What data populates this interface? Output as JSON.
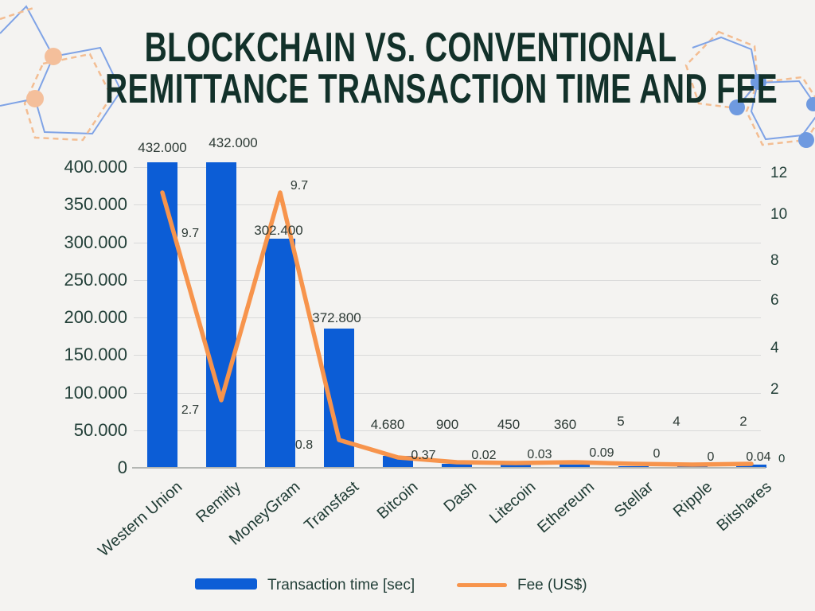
{
  "page": {
    "background": "#f4f3f1"
  },
  "title": {
    "line1": "BLOCKCHAIN VS. CONVENTIONAL",
    "line2": "REMITTANCE TRANSACTION TIME AND FEE",
    "color": "#12312a"
  },
  "chart_data": {
    "type": "combo-bar-line",
    "title": "Blockchain vs. conventional remittance transaction time and fee",
    "categories": [
      "Western Union",
      "Remitly",
      "MoneyGram",
      "Transfast",
      "Bitcoin",
      "Dash",
      "Litecoin",
      "Ethereum",
      "Stellar",
      "Ripple",
      "Bitshares"
    ],
    "series": [
      {
        "name": "Transaction time [sec]",
        "type": "bar",
        "axis": "left",
        "color": "#0c5dd6",
        "values": [
          432000,
          432000,
          302400,
          372800,
          4680,
          900,
          450,
          360,
          5,
          4,
          2
        ],
        "data_labels": [
          "432.000",
          "432.000",
          "302.400",
          "372.800",
          "4.680",
          "900",
          "450",
          "360",
          "5",
          "4",
          "2"
        ]
      },
      {
        "name": "Fee (US$)",
        "type": "line",
        "axis": "right",
        "color": "#f7944c",
        "values": [
          9.7,
          2.7,
          9.7,
          0.8,
          0.37,
          0.02,
          0.03,
          0.09,
          0,
          0,
          0.04
        ],
        "data_labels": [
          "9.7",
          "2.7",
          "9.7",
          "0.8",
          "0.37",
          "0.02",
          "0.03",
          "0.09",
          "0",
          "0",
          "0.04"
        ]
      }
    ],
    "left_axis": {
      "range": [
        0,
        400000
      ],
      "tick_labels": [
        "400.000",
        "350.000",
        "300.000",
        "250.000",
        "200.000",
        "150.000",
        "100.000",
        "50.000",
        "0"
      ]
    },
    "right_axis": {
      "range": [
        0,
        12
      ],
      "tick_labels": [
        "12",
        "10",
        "8",
        "6",
        "4",
        "2",
        "0"
      ]
    },
    "grid": "horizontal",
    "legend": {
      "position": "bottom",
      "entries": [
        {
          "label": "Transaction time [sec]",
          "marker": "bar-swatch",
          "color": "#0c5dd6"
        },
        {
          "label": "Fee (US$)",
          "marker": "line-swatch",
          "color": "#f7944c"
        }
      ]
    }
  },
  "decorations": {
    "hexagon_outline_blue": "#7fa3e6",
    "hexagon_dashed_peach": "#f3bd92",
    "dot_peach": "#f4bf9b",
    "dot_blue": "#6f9ae0"
  }
}
